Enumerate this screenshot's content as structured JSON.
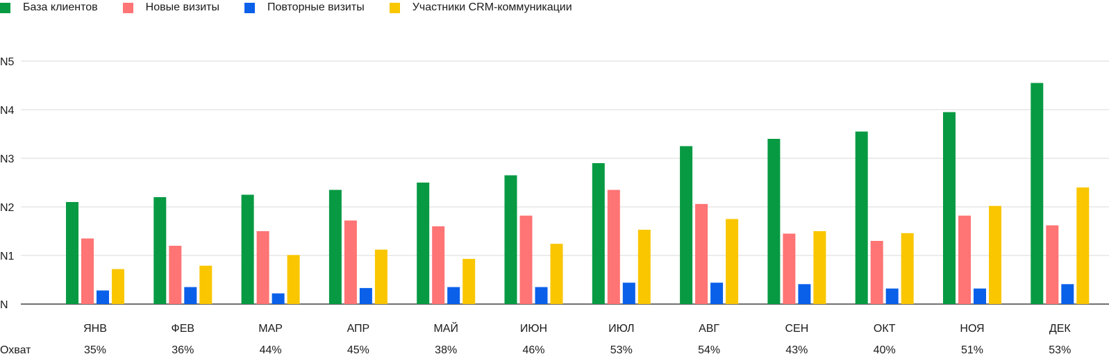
{
  "chart_data": {
    "type": "bar",
    "title": "",
    "xlabel": "",
    "ylabel": "",
    "ylim": [
      0,
      5.2
    ],
    "yticks": [
      {
        "value": 0,
        "label": "N"
      },
      {
        "value": 1,
        "label": "N1"
      },
      {
        "value": 2,
        "label": "N2"
      },
      {
        "value": 3,
        "label": "N3"
      },
      {
        "value": 4,
        "label": "N4"
      },
      {
        "value": 5,
        "label": "N5"
      }
    ],
    "grid": true,
    "legend_position": "top-left",
    "categories": [
      "ЯНВ",
      "ФЕВ",
      "МАР",
      "АПР",
      "МАЙ",
      "ИЮН",
      "ИЮЛ",
      "АВГ",
      "СЕН",
      "ОКТ",
      "НОЯ",
      "ДЕК"
    ],
    "series": [
      {
        "name": "База клиентов",
        "color": "#079a43",
        "values": [
          2.1,
          2.2,
          2.25,
          2.35,
          2.5,
          2.65,
          2.9,
          3.25,
          3.4,
          3.55,
          3.95,
          4.55
        ]
      },
      {
        "name": "Новые визиты",
        "color": "#ff7474",
        "values": [
          1.35,
          1.2,
          1.5,
          1.72,
          1.6,
          1.82,
          2.35,
          2.06,
          1.45,
          1.3,
          1.82,
          1.62
        ]
      },
      {
        "name": "Повторные визиты",
        "color": "#0a60e9",
        "values": [
          0.28,
          0.35,
          0.22,
          0.33,
          0.35,
          0.35,
          0.44,
          0.44,
          0.41,
          0.32,
          0.32,
          0.41
        ]
      },
      {
        "name": "Участники CRM-коммуникации",
        "color": "#f9c600",
        "values": [
          0.72,
          0.79,
          1.01,
          1.12,
          0.93,
          1.24,
          1.53,
          1.75,
          1.5,
          1.46,
          2.02,
          2.4
        ]
      }
    ],
    "coverage": {
      "label": "Охват",
      "values": [
        "35%",
        "36%",
        "44%",
        "45%",
        "38%",
        "46%",
        "53%",
        "54%",
        "43%",
        "40%",
        "51%",
        "53%"
      ]
    }
  }
}
